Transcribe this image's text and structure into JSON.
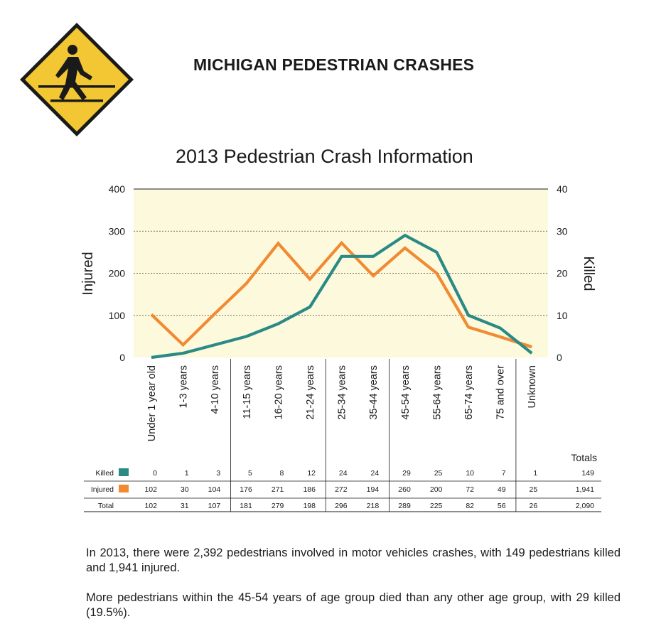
{
  "page": {
    "title": "MICHIGAN PEDESTRIAN CRASHES",
    "sign_icon": "pedestrian-crossing-sign-icon"
  },
  "chart_data": {
    "type": "line",
    "title": "2013 Pedestrian Crash Information",
    "ylabel_left": "Injured",
    "ylabel_right": "Killed",
    "ylim_left": [
      0,
      400
    ],
    "ylim_right": [
      0,
      40
    ],
    "yticks_left": [
      0,
      100,
      200,
      300,
      400
    ],
    "yticks_right": [
      0,
      10,
      20,
      30,
      40
    ],
    "grid": true,
    "categories": [
      "Under 1 year old",
      "1-3 years",
      "4-10 years",
      "11-15 years",
      "16-20 years",
      "21-24 years",
      "25-34 years",
      "35-44 years",
      "45-54 years",
      "55-64 years",
      "65-74 years",
      "75 and over",
      "Unknown"
    ],
    "series": [
      {
        "name": "Killed",
        "axis": "right",
        "color": "#2a8a86",
        "values": [
          0,
          1,
          3,
          5,
          8,
          12,
          24,
          24,
          29,
          25,
          10,
          7,
          1
        ]
      },
      {
        "name": "Injured",
        "axis": "left",
        "color": "#f08a33",
        "values": [
          102,
          30,
          104,
          176,
          271,
          186,
          272,
          194,
          260,
          200,
          72,
          49,
          25
        ]
      }
    ],
    "table": {
      "totals_header": "Totals",
      "rows": [
        {
          "label": "Killed",
          "color": "#2a8a86",
          "values": [
            "0",
            "1",
            "3",
            "5",
            "8",
            "12",
            "24",
            "24",
            "29",
            "25",
            "10",
            "7",
            "1"
          ],
          "total": "149"
        },
        {
          "label": "Injured",
          "color": "#f08a33",
          "values": [
            "102",
            "30",
            "104",
            "176",
            "271",
            "186",
            "272",
            "194",
            "260",
            "200",
            "72",
            "49",
            "25"
          ],
          "total": "1,941"
        },
        {
          "label": "Total",
          "color": "",
          "values": [
            "102",
            "31",
            "107",
            "181",
            "279",
            "198",
            "296",
            "218",
            "289",
            "225",
            "82",
            "56",
            "26"
          ],
          "total": "2,090"
        }
      ]
    },
    "plot_background": "#fdf9dc"
  },
  "summary": {
    "p1": "In 2013, there were 2,392 pedestrians involved in motor vehicles crashes, with 149 pedestrians killed and 1,941 injured.",
    "p2": "More pedestrians within the 45-54 years of age group died than any other age group, with 29 killed (19.5%)."
  }
}
